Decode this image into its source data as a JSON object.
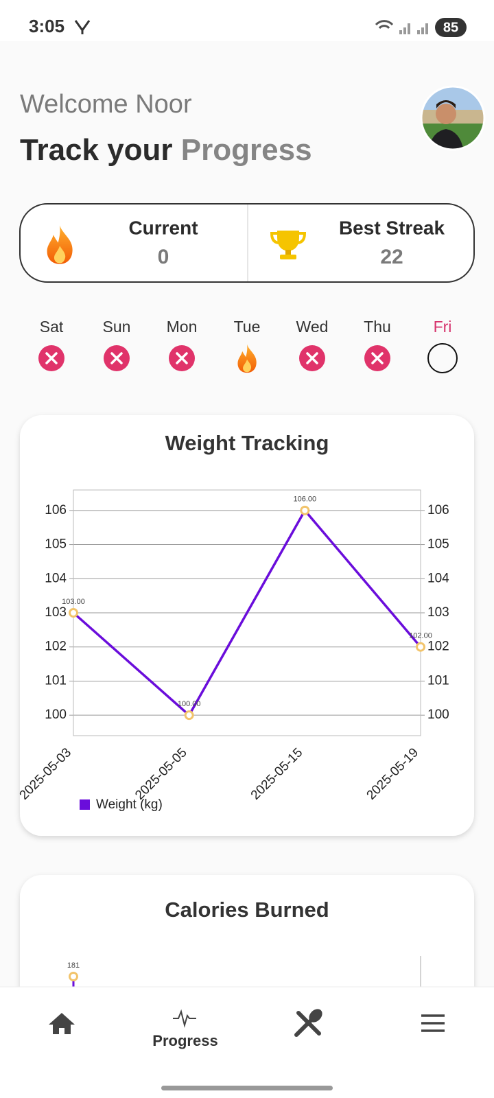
{
  "status_bar": {
    "time": "3:05",
    "battery": "85"
  },
  "header": {
    "greeting": "Welcome Noor",
    "title_dark": "Track your",
    "title_light": "Progress"
  },
  "streaks": {
    "current_label": "Current",
    "current_value": 0,
    "best_label": "Best Streak",
    "best_value": 22
  },
  "week": {
    "days": [
      "Sat",
      "Sun",
      "Mon",
      "Tue",
      "Wed",
      "Thu",
      "Fri"
    ]
  },
  "chart_data": [
    {
      "type": "line",
      "title": "Weight Tracking",
      "categories": [
        "2025-05-03",
        "2025-05-05",
        "2025-05-15",
        "2025-05-19"
      ],
      "series": [
        {
          "name": "Weight (kg)",
          "color": "#6a0ddb",
          "values": [
            103,
            100,
            106,
            102
          ],
          "value_labels": [
            "103.00",
            "100.00",
            "106.00",
            "102.00"
          ]
        }
      ],
      "ylim": [
        99.4,
        106.6
      ],
      "yticks": [
        100,
        101,
        102,
        103,
        104,
        105,
        106
      ],
      "grid": true,
      "legend": "bottom-left"
    },
    {
      "type": "line",
      "title": "Calories Burned",
      "series": [
        {
          "color": "#6a0ddb",
          "values": [
            181
          ]
        }
      ]
    }
  ],
  "nav": {
    "active_label": "Progress"
  }
}
